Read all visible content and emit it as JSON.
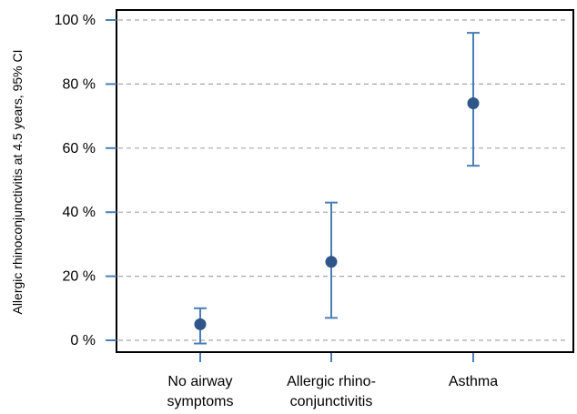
{
  "chart_data": {
    "type": "scatter",
    "ylabel": "Allergic rhinoconjunctivitis at 4.5 years, 95% CI",
    "ylim": [
      0,
      100
    ],
    "y_ticks": [
      {
        "value": 0,
        "label": "0 %"
      },
      {
        "value": 20,
        "label": "20 %"
      },
      {
        "value": 40,
        "label": "40 %"
      },
      {
        "value": 60,
        "label": "60 %"
      },
      {
        "value": 80,
        "label": "80 %"
      },
      {
        "value": 100,
        "label": "100 %"
      }
    ],
    "grid": "horizontal-dashed",
    "categories": [
      {
        "line1": "No airway",
        "line2": "symptoms"
      },
      {
        "line1": "Allergic rhino-",
        "line2": "conjunctivitis"
      },
      {
        "line1": "Asthma",
        "line2": ""
      }
    ],
    "points": [
      {
        "value": 5,
        "ci_low": -1,
        "ci_high": 10
      },
      {
        "value": 24.5,
        "ci_low": 7,
        "ci_high": 43
      },
      {
        "value": 74,
        "ci_low": 54.5,
        "ci_high": 96
      }
    ],
    "colors": {
      "marker": "#2f5589",
      "errorbar": "#4a7fb5",
      "tick": "#4a7fb5",
      "grid": "#a6a6a6",
      "frame": "#000000"
    }
  }
}
